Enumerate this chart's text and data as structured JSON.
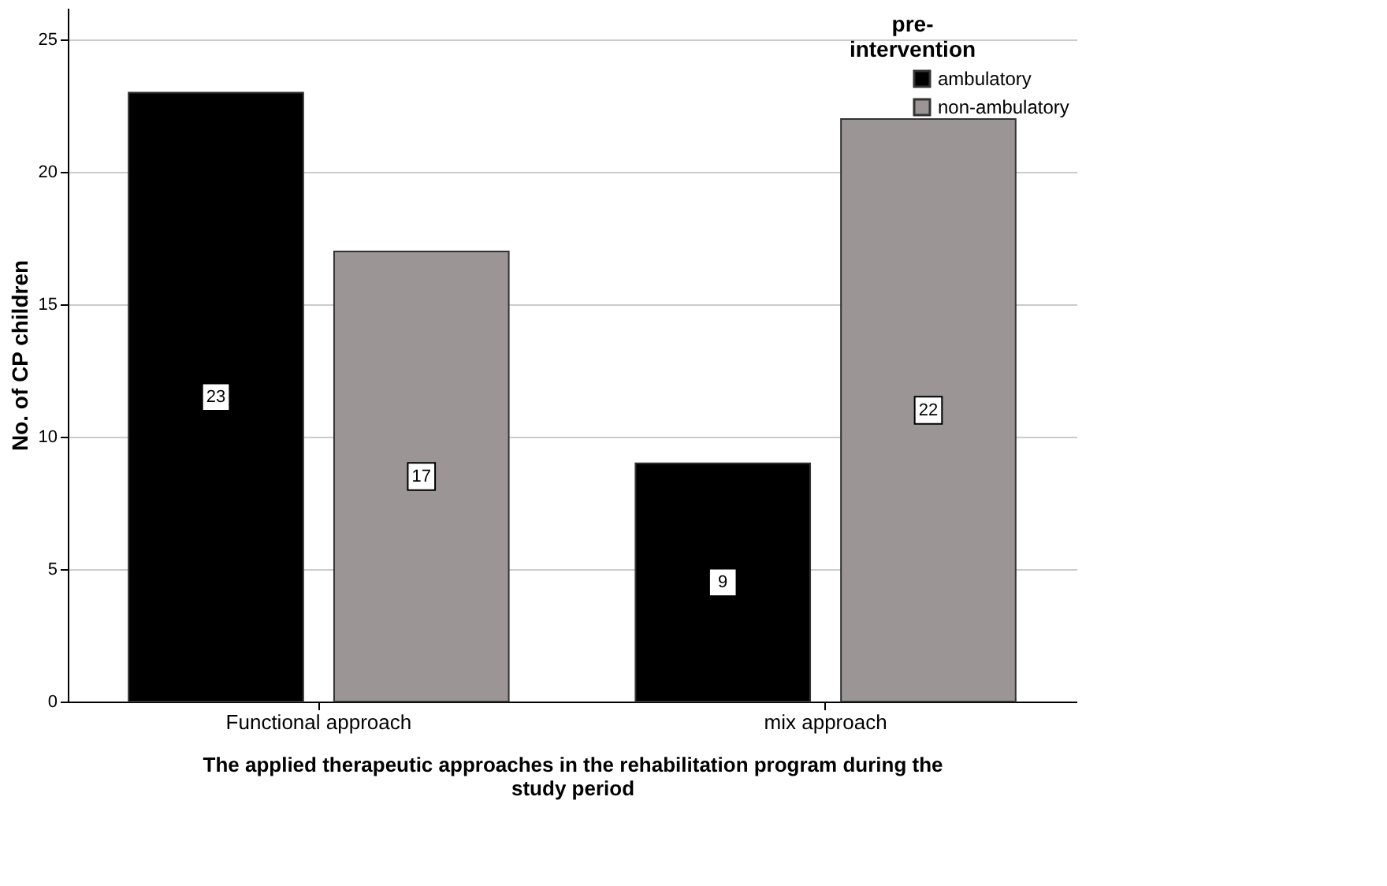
{
  "chart_data": {
    "type": "bar",
    "xlabel": "The applied therapeutic approaches in the rehabilitation program during the study period",
    "ylabel": "No. of CP children",
    "legend_title": "pre-intervention",
    "categories": [
      "Functional approach",
      "mix approach"
    ],
    "series": [
      {
        "name": "ambulatory",
        "color": "#000000",
        "values": [
          23,
          9
        ]
      },
      {
        "name": "non-ambulatory",
        "color": "#9b9595",
        "values": [
          17,
          22
        ]
      }
    ],
    "ylim": [
      0,
      26.2
    ],
    "yticks": [
      0,
      5,
      10,
      15,
      20,
      25
    ],
    "grid": "y",
    "legend": "top right",
    "data_labels": true
  }
}
